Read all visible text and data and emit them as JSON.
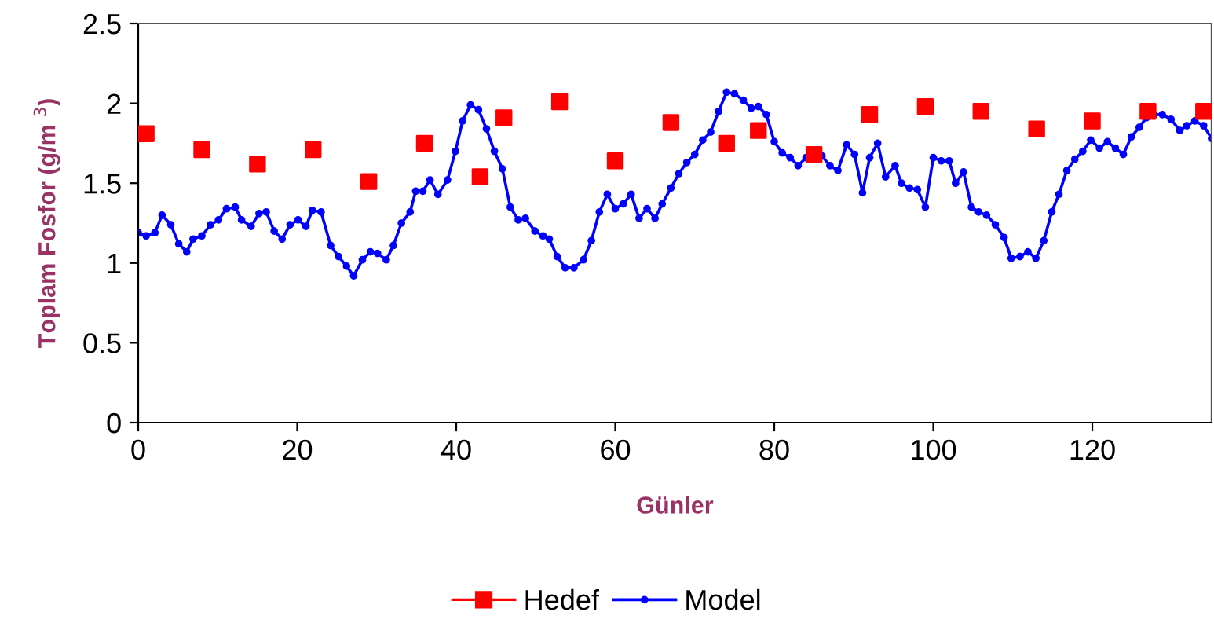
{
  "chart_data": {
    "type": "line",
    "xlabel": "Günler",
    "ylabel": "Toplam Fosfor (g/m $^{3}$)",
    "xlim": [
      0,
      135
    ],
    "xticks": [
      0,
      20,
      40,
      60,
      80,
      100,
      120
    ],
    "ylim": [
      0,
      2.5
    ],
    "yticks": [
      0,
      0.5,
      1,
      1.5,
      2,
      2.5
    ],
    "grid": false,
    "legend": "bottom",
    "series": [
      {
        "name": "Hedef",
        "type": "scatter",
        "marker": "square",
        "color": "#ff0000",
        "x": [
          1,
          8,
          15,
          22,
          29,
          36,
          43,
          46,
          53,
          60,
          67,
          74,
          78,
          85,
          92,
          99,
          106,
          113,
          120,
          127,
          134
        ],
        "values": [
          1.81,
          1.71,
          1.62,
          1.71,
          1.51,
          1.75,
          1.54,
          1.91,
          2.01,
          1.64,
          1.88,
          1.75,
          1.83,
          1.68,
          1.93,
          1.98,
          1.95,
          1.84,
          1.89,
          1.95,
          1.95
        ]
      },
      {
        "name": "Model",
        "marker": "circle",
        "line_style": "solid",
        "color": "#0000ff",
        "x": [
          0,
          1,
          2.1,
          3,
          4.1,
          5.1,
          6.1,
          6.9,
          8,
          9.1,
          10.1,
          11.1,
          12.2,
          13,
          14.2,
          15.2,
          16.1,
          17.1,
          18.1,
          19.1,
          20.1,
          21.1,
          21.9,
          23,
          24.2,
          25.2,
          26.2,
          27.1,
          28.2,
          29.2,
          30.1,
          31.2,
          32.1,
          33.1,
          34.2,
          34.9,
          35.8,
          36.7,
          37.7,
          38.9,
          39.9,
          40.8,
          41.8,
          42.8,
          43.8,
          44.8,
          45.8,
          46.8,
          47.8,
          48.7,
          49.9,
          50.9,
          51.7,
          52.7,
          53.7,
          54.8,
          56,
          57,
          58,
          59,
          60,
          61,
          62,
          63,
          64,
          65,
          65.9,
          67,
          68,
          69,
          70,
          71,
          72,
          73,
          74,
          75,
          76.1,
          77.1,
          78,
          79,
          80,
          81,
          82,
          83,
          84,
          85.2,
          86,
          87,
          88,
          89.1,
          90.1,
          91.1,
          92,
          93,
          94,
          95.2,
          96,
          97,
          98,
          99,
          100,
          101,
          102,
          102.8,
          103.8,
          104.8,
          105.7,
          106.7,
          107.8,
          108.9,
          109.8,
          110.9,
          111.9,
          112.9,
          113.9,
          114.9,
          115.8,
          116.8,
          117.8,
          118.8,
          119.8,
          120.9,
          121.9,
          122.9,
          123.9,
          124.9,
          125.9,
          126.8,
          127.8,
          128.8,
          129.9,
          131,
          131.9,
          132.9,
          134,
          135
        ],
        "values": [
          1.19,
          1.17,
          1.19,
          1.3,
          1.24,
          1.12,
          1.07,
          1.15,
          1.17,
          1.24,
          1.27,
          1.34,
          1.35,
          1.27,
          1.23,
          1.31,
          1.32,
          1.2,
          1.15,
          1.24,
          1.27,
          1.23,
          1.33,
          1.32,
          1.11,
          1.04,
          0.98,
          0.92,
          1.02,
          1.07,
          1.06,
          1.02,
          1.11,
          1.25,
          1.32,
          1.45,
          1.45,
          1.52,
          1.43,
          1.52,
          1.7,
          1.89,
          1.99,
          1.96,
          1.84,
          1.7,
          1.59,
          1.35,
          1.27,
          1.28,
          1.2,
          1.17,
          1.15,
          1.04,
          0.97,
          0.97,
          1.02,
          1.14,
          1.32,
          1.43,
          1.34,
          1.37,
          1.43,
          1.28,
          1.34,
          1.28,
          1.37,
          1.47,
          1.56,
          1.63,
          1.68,
          1.77,
          1.82,
          1.95,
          2.07,
          2.06,
          2.02,
          1.97,
          1.98,
          1.93,
          1.76,
          1.69,
          1.66,
          1.61,
          1.66,
          1.67,
          1.67,
          1.61,
          1.58,
          1.74,
          1.68,
          1.44,
          1.66,
          1.75,
          1.54,
          1.61,
          1.5,
          1.47,
          1.46,
          1.35,
          1.66,
          1.64,
          1.64,
          1.5,
          1.57,
          1.35,
          1.32,
          1.3,
          1.24,
          1.16,
          1.03,
          1.04,
          1.07,
          1.03,
          1.14,
          1.32,
          1.43,
          1.58,
          1.65,
          1.7,
          1.77,
          1.72,
          1.76,
          1.72,
          1.68,
          1.79,
          1.85,
          1.91,
          1.93,
          1.93,
          1.9,
          1.83,
          1.86,
          1.89,
          1.86,
          1.78
        ]
      }
    ]
  }
}
